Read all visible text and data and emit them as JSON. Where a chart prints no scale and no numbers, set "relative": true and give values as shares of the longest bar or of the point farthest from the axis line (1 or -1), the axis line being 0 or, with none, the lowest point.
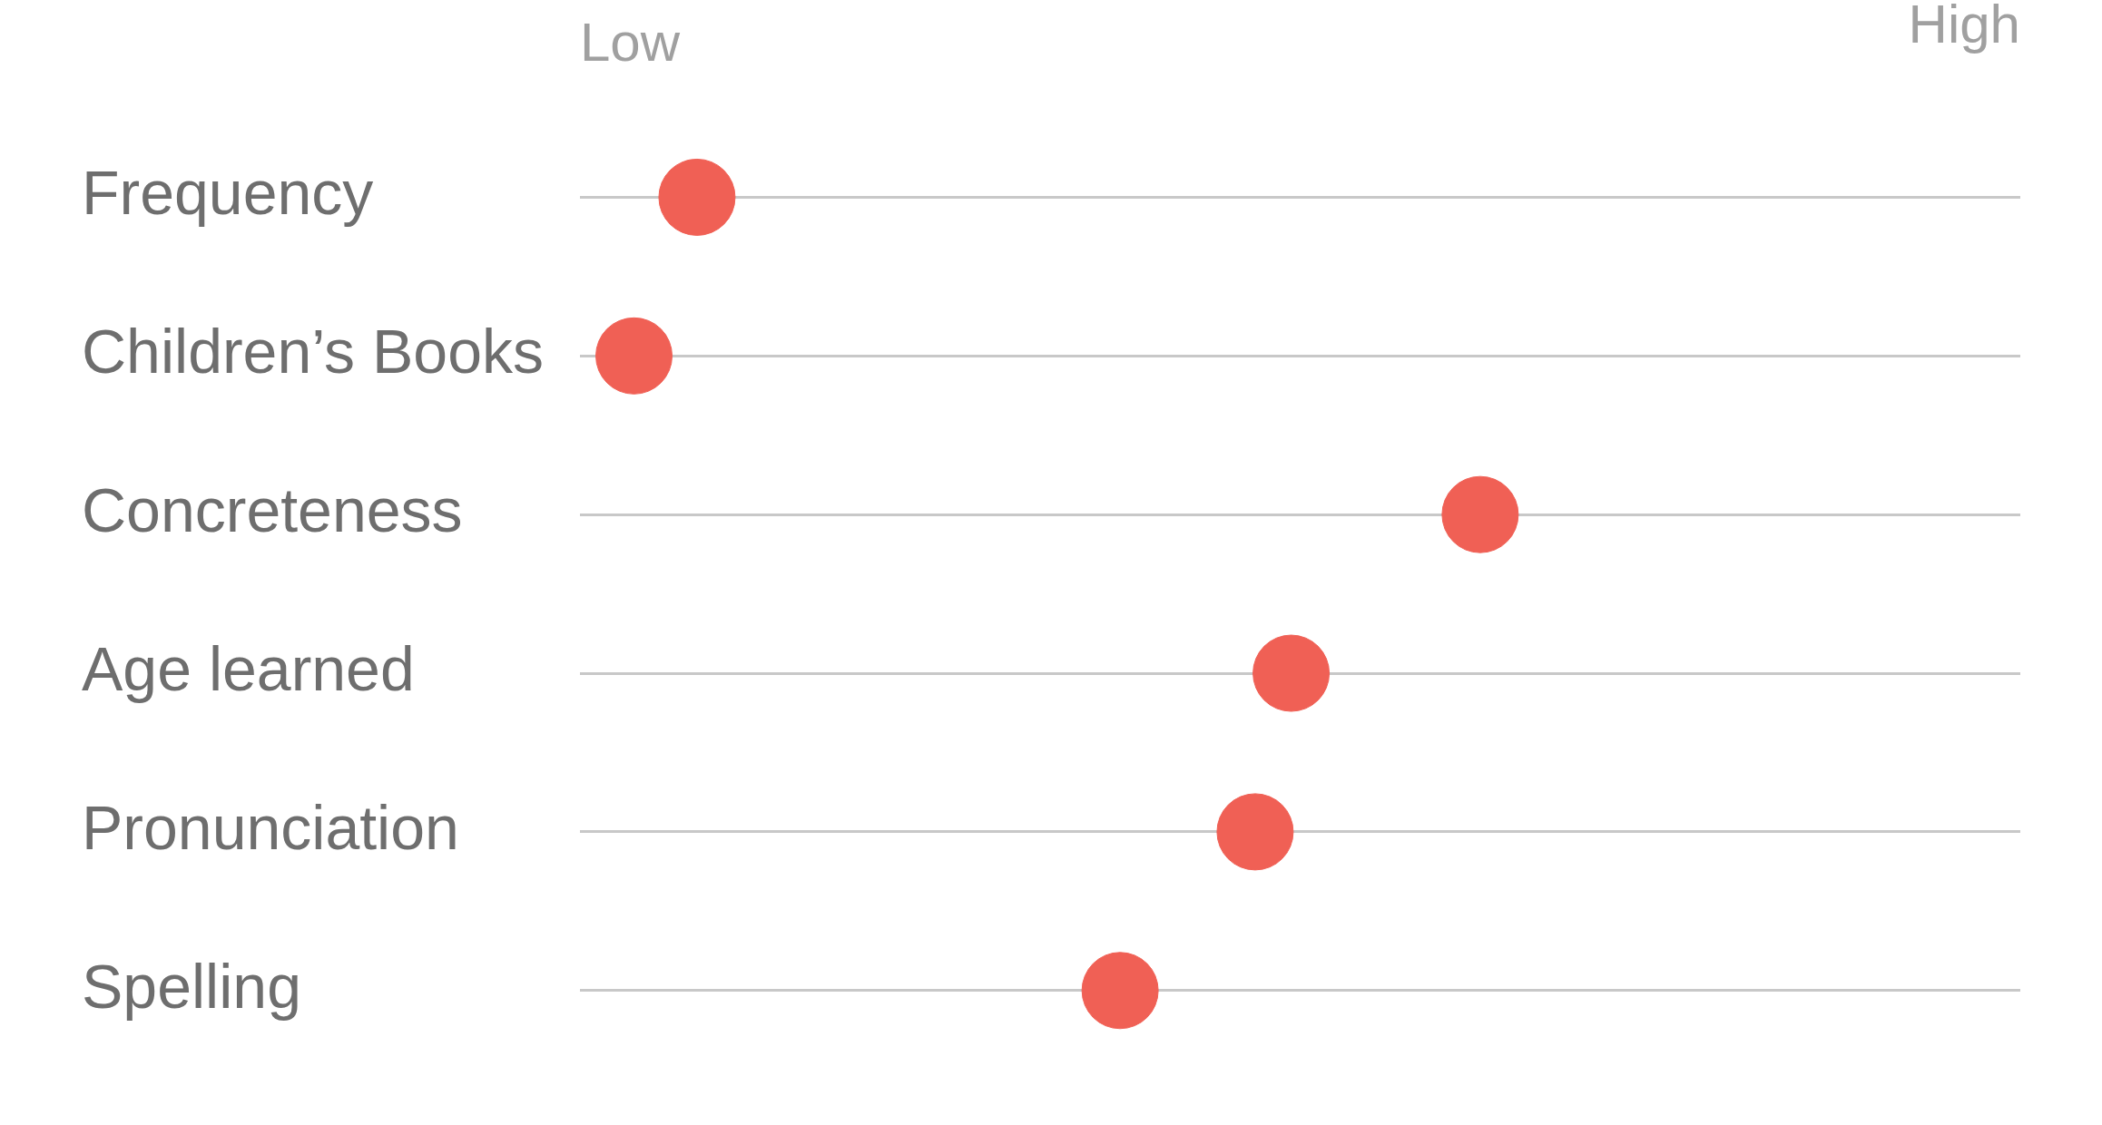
{
  "chart_data": {
    "type": "scatter",
    "orientation": "horizontal",
    "relative": true,
    "categories": [
      "Frequency",
      "Children’s Books",
      "Concreteness",
      "Age learned",
      "Pronunciation",
      "Spelling"
    ],
    "values": [
      0.13,
      0.06,
      1,
      0.79,
      0.75,
      0.6
    ],
    "color": "#f06055",
    "marker": "circle",
    "grid": "y",
    "annotations": [
      "Low",
      "High"
    ]
  }
}
